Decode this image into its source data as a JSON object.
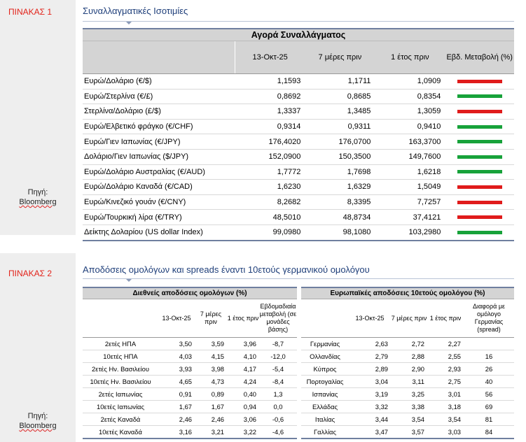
{
  "table1": {
    "label": "ΠΙΝΑΚΑΣ 1",
    "title": "Συναλλαγματικές Ισοτιμίες",
    "banner": "Αγορά Συναλλάγματος",
    "headers": [
      "",
      "13-Οκτ-25",
      "7 μέρες πριν",
      "1 έτος πριν",
      "Εβδ. Μεταβολή (%)"
    ],
    "source_label": "Πηγή:",
    "source_value": "Bloomberg",
    "colors": {
      "red": "#e01b1b",
      "green": "#17a23a"
    },
    "rows": [
      {
        "name": "Ευρώ/Δολάριο (€/$)",
        "now": "1,1593",
        "week": "1,1711",
        "year": "1,0909",
        "change": "red"
      },
      {
        "name": "Ευρώ/Στερλίνα (€/£)",
        "now": "0,8692",
        "week": "0,8685",
        "year": "0,8354",
        "change": "green"
      },
      {
        "name": "Στερλίνα/Δολάριο (£/$)",
        "now": "1,3337",
        "week": "1,3485",
        "year": "1,3059",
        "change": "red"
      },
      {
        "name": "Ευρώ/Ελβετικό φράγκο (€/CHF)",
        "now": "0,9314",
        "week": "0,9311",
        "year": "0,9410",
        "change": "green"
      },
      {
        "name": "Ευρώ/Γιεν Ιαπωνίας (€/JPY)",
        "now": "176,4020",
        "week": "176,0700",
        "year": "163,3700",
        "change": "green"
      },
      {
        "name": "Δολάριο/Γιεν Ιαπωνίας ($/JPY)",
        "now": "152,0900",
        "week": "150,3500",
        "year": "149,7600",
        "change": "green"
      },
      {
        "name": "Ευρώ/Δολάριο Αυστραλίας (€/AUD)",
        "now": "1,7772",
        "week": "1,7698",
        "year": "1,6218",
        "change": "green"
      },
      {
        "name": "Ευρώ/Δολάριο Καναδά (€/CAD)",
        "now": "1,6230",
        "week": "1,6329",
        "year": "1,5049",
        "change": "red"
      },
      {
        "name": "Ευρώ/Κινεζικό γουάν (€/CNY)",
        "now": "8,2682",
        "week": "8,3395",
        "year": "7,7257",
        "change": "red"
      },
      {
        "name": "Ευρώ/Τουρκική λίρα (€/TRY)",
        "now": "48,5010",
        "week": "48,8734",
        "year": "37,4121",
        "change": "red"
      },
      {
        "name": "Δείκτης Δολαρίου (US dollar Index)",
        "now": "99,0980",
        "week": "98,1080",
        "year": "103,2980",
        "change": "green"
      }
    ]
  },
  "table2": {
    "label": "ΠΙΝΑΚΑΣ 2",
    "title": "Αποδόσεις ομολόγων και spreads έναντι 10ετούς γερμανικού ομολόγου",
    "source_label": "Πηγή:",
    "source_value": "Bloomberg",
    "left": {
      "banner": "Διεθνείς αποδόσεις ομολόγων (%)",
      "headers": [
        "",
        "13-Οκτ-25",
        "7 μέρες πριν",
        "1 έτος πριν",
        "Εβδομαδιαία μεταβολή (σε μονάδες βάσης)"
      ],
      "rows": [
        {
          "name": "2ετές ΗΠΑ",
          "now": "3,50",
          "week": "3,59",
          "year": "3,96",
          "chg": "-8,7"
        },
        {
          "name": "10ετές ΗΠΑ",
          "now": "4,03",
          "week": "4,15",
          "year": "4,10",
          "chg": "-12,0"
        },
        {
          "name": "2ετές Ην. Βασιλείου",
          "now": "3,93",
          "week": "3,98",
          "year": "4,17",
          "chg": "-5,4"
        },
        {
          "name": "10ετές Ην. Βασιλείου",
          "now": "4,65",
          "week": "4,73",
          "year": "4,24",
          "chg": "-8,4"
        },
        {
          "name": "2ετές Ιαπωνίας",
          "now": "0,91",
          "week": "0,89",
          "year": "0,40",
          "chg": "1,3"
        },
        {
          "name": "10ετές Ιαπωνίας",
          "now": "1,67",
          "week": "1,67",
          "year": "0,94",
          "chg": "0,0"
        },
        {
          "name": "2ετές Καναδά",
          "now": "2,46",
          "week": "2,46",
          "year": "3,06",
          "chg": "-0,6"
        },
        {
          "name": "10ετές Καναδά",
          "now": "3,16",
          "week": "3,21",
          "year": "3,22",
          "chg": "-4,6"
        }
      ]
    },
    "right": {
      "banner": "Ευρωπαϊκές αποδόσεις 10ετούς ομολόγου (%)",
      "headers": [
        "",
        "13-Οκτ-25",
        "7 μέρες πριν",
        "1 έτος πριν",
        "Διαφορά με ομόλογο Γερμανίας (spread)"
      ],
      "rows": [
        {
          "name": "Γερμανίας",
          "now": "2,63",
          "week": "2,72",
          "year": "2,27",
          "spread": ""
        },
        {
          "name": "Ολλανδίας",
          "now": "2,79",
          "week": "2,88",
          "year": "2,55",
          "spread": "16"
        },
        {
          "name": "Κύπρος",
          "now": "2,89",
          "week": "2,90",
          "year": "2,93",
          "spread": "26"
        },
        {
          "name": "Πορτογαλίας",
          "now": "3,04",
          "week": "3,11",
          "year": "2,75",
          "spread": "40"
        },
        {
          "name": "Ισπανίας",
          "now": "3,19",
          "week": "3,25",
          "year": "3,01",
          "spread": "56"
        },
        {
          "name": "Ελλάδας",
          "now": "3,32",
          "week": "3,38",
          "year": "3,18",
          "spread": "69"
        },
        {
          "name": "Ιταλίας",
          "now": "3,44",
          "week": "3,54",
          "year": "3,54",
          "spread": "81"
        },
        {
          "name": "Γαλλίας",
          "now": "3,47",
          "week": "3,57",
          "year": "3,03",
          "spread": "84"
        }
      ]
    }
  }
}
